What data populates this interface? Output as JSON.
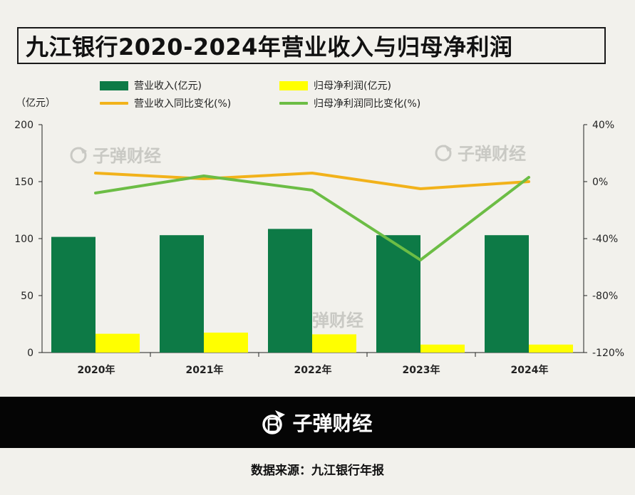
{
  "title": "九江银行2020-2024年营业收入与归母净利润",
  "unit_label": "（亿元）",
  "legend": [
    {
      "label": "营业收入(亿元)",
      "kind": "bar",
      "color": "#0d7a46"
    },
    {
      "label": "归母净利润(亿元)",
      "kind": "bar",
      "color": "#ffff00"
    },
    {
      "label": "营业收入同比变化(%)",
      "kind": "line",
      "color": "#f2b21a"
    },
    {
      "label": "归母净利润同比变化(%)",
      "kind": "line",
      "color": "#6cbd45"
    }
  ],
  "watermark_text": "子弹财经",
  "footer": {
    "brand": "子弹财经",
    "source": "数据来源：九江银行年报"
  },
  "chart_data": {
    "type": "bar",
    "categories": [
      "2020年",
      "2021年",
      "2022年",
      "2023年",
      "2024年"
    ],
    "series": [
      {
        "name": "营业收入(亿元)",
        "type": "bar",
        "axis": "left",
        "color": "#0d7a46",
        "values": [
          101.5,
          103,
          108.5,
          103,
          103
        ]
      },
      {
        "name": "归母净利润(亿元)",
        "type": "bar",
        "axis": "left",
        "color": "#ffff00",
        "values": [
          16.5,
          17.5,
          16,
          7,
          7
        ]
      },
      {
        "name": "营业收入同比变化(%)",
        "type": "line",
        "axis": "right",
        "color": "#f2b21a",
        "values": [
          6,
          2,
          6,
          -5,
          0
        ]
      },
      {
        "name": "归母净利润同比变化(%)",
        "type": "line",
        "axis": "right",
        "color": "#6cbd45",
        "values": [
          -8,
          4,
          -6,
          -55,
          3
        ]
      }
    ],
    "y_left": {
      "ylim": [
        0,
        200
      ],
      "ticks": [
        "0",
        "50",
        "100",
        "150",
        "200"
      ]
    },
    "y_right": {
      "ylim": [
        -120,
        40
      ],
      "ticks": [
        "-120%",
        "-80%",
        "-40%",
        "0%",
        "40%"
      ]
    },
    "grid": false,
    "legend_position": "top"
  }
}
